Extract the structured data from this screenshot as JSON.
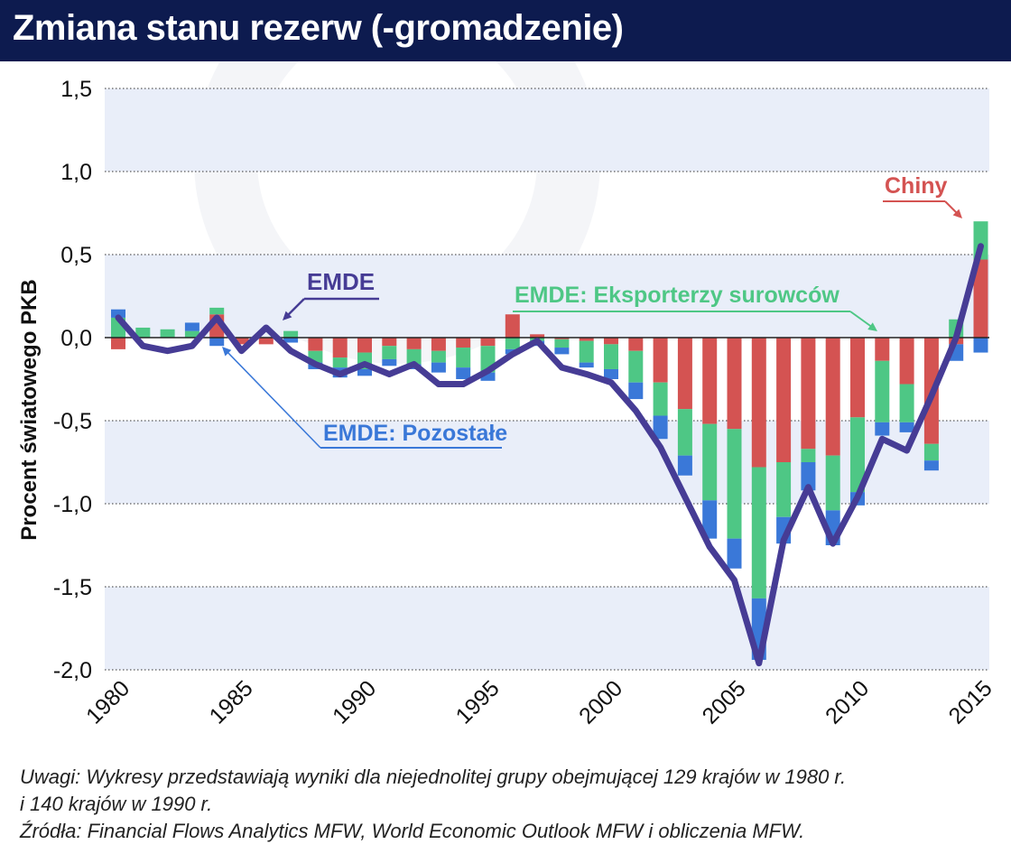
{
  "header": {
    "title": "Zmiana stanu rezerw (-gromadzenie)"
  },
  "notes": {
    "line1": "Uwagi: Wykresy przedstawiają wyniki dla niejednolitej grupy obejmującej 129 krajów w 1980 r.",
    "line2": "i 140 krajów w 1990 r.",
    "line3": "Źródła: Financial Flows Analytics MFW,  World Economic Outlook MFW i obliczenia MFW."
  },
  "colors": {
    "chiny": "#d45352",
    "eksporterzy": "#4ec785",
    "pozostale": "#3a78d8",
    "emde": "#463c95",
    "band": "#e9eef9",
    "header": "#0d1b4f"
  },
  "chart_data": {
    "type": "bar",
    "stacked": true,
    "ylabel": "Procent światowego PKB",
    "ylim": [
      -2.0,
      1.5
    ],
    "yticks": [
      1.5,
      1.0,
      0.5,
      0.0,
      -0.5,
      -1.0,
      -1.5,
      -2.0
    ],
    "ytick_labels": [
      "1,5",
      "1,0",
      "0,5",
      "0,0",
      "-0,5",
      "-1,0",
      "-1,5",
      "-2,0"
    ],
    "xticks": [
      1980,
      1985,
      1990,
      1995,
      2000,
      2005,
      2010,
      2015
    ],
    "x": [
      1980,
      1981,
      1982,
      1983,
      1984,
      1985,
      1986,
      1987,
      1988,
      1989,
      1990,
      1991,
      1992,
      1993,
      1994,
      1995,
      1996,
      1997,
      1998,
      1999,
      2000,
      2001,
      2002,
      2003,
      2004,
      2005,
      2006,
      2007,
      2008,
      2009,
      2010,
      2011,
      2012,
      2013,
      2014,
      2015
    ],
    "series": [
      {
        "name": "Chiny",
        "color_key": "chiny",
        "values": [
          -0.07,
          0,
          0,
          0,
          0.14,
          -0.04,
          -0.04,
          0,
          -0.08,
          -0.12,
          -0.09,
          -0.05,
          -0.07,
          -0.08,
          -0.06,
          -0.05,
          0.14,
          0.02,
          -0.01,
          -0.02,
          -0.04,
          -0.08,
          -0.27,
          -0.43,
          -0.52,
          -0.55,
          -0.78,
          -0.75,
          -0.67,
          -0.71,
          -0.48,
          -0.14,
          -0.28,
          -0.64,
          -0.04,
          0.47
        ]
      },
      {
        "name": "EMDE: Eksporterzy surowców",
        "color_key": "eksporterzy",
        "values": [
          0.12,
          0.06,
          0.05,
          0.04,
          0.04,
          0,
          0,
          0.04,
          -0.07,
          -0.06,
          -0.1,
          -0.08,
          -0.09,
          -0.07,
          -0.12,
          -0.16,
          -0.07,
          -0.02,
          -0.05,
          -0.13,
          -0.15,
          -0.19,
          -0.2,
          -0.28,
          -0.46,
          -0.66,
          -0.79,
          -0.33,
          -0.08,
          -0.33,
          -0.45,
          -0.37,
          -0.23,
          -0.1,
          0.11,
          0.23
        ]
      },
      {
        "name": "EMDE: Pozostałe",
        "color_key": "pozostale",
        "values": [
          0.05,
          0,
          0,
          0.05,
          -0.05,
          0,
          0,
          -0.03,
          -0.04,
          -0.06,
          -0.04,
          -0.04,
          -0.03,
          -0.06,
          -0.07,
          -0.05,
          -0.03,
          -0.03,
          -0.04,
          -0.03,
          -0.06,
          -0.1,
          -0.14,
          -0.12,
          -0.23,
          -0.18,
          -0.37,
          -0.16,
          -0.17,
          -0.21,
          -0.08,
          -0.08,
          -0.06,
          -0.06,
          -0.1,
          -0.09
        ]
      },
      {
        "name": "EMDE",
        "type": "line",
        "color_key": "emde",
        "values": [
          0.12,
          -0.05,
          -0.08,
          -0.05,
          0.12,
          -0.08,
          0.06,
          -0.08,
          -0.16,
          -0.22,
          -0.16,
          -0.22,
          -0.16,
          -0.28,
          -0.28,
          -0.2,
          -0.1,
          -0.02,
          -0.18,
          -0.22,
          -0.27,
          -0.44,
          -0.66,
          -0.96,
          -1.26,
          -1.46,
          -1.96,
          -1.22,
          -0.9,
          -1.24,
          -0.96,
          -0.61,
          -0.68,
          -0.35,
          0,
          0.55
        ]
      }
    ],
    "annotations": {
      "chiny": "Chiny",
      "emde": "EMDE",
      "eksporterzy": "EMDE: Eksporterzy surowców",
      "pozostale": "EMDE: Pozostałe"
    }
  }
}
